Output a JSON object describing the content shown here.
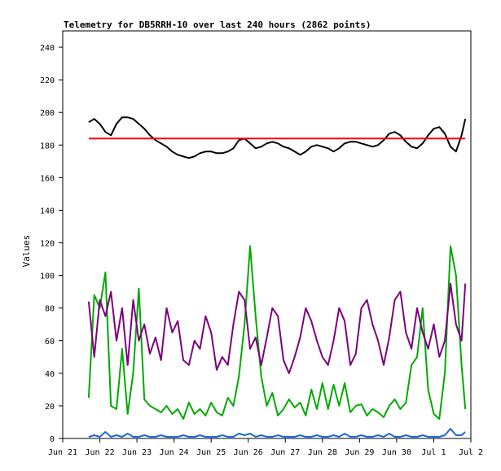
{
  "chart_data": {
    "type": "line",
    "title": "Telemetry for DB5RRH-10 over last 240 hours (2862 points)",
    "xlabel": "",
    "ylabel": "Values",
    "xlim": [
      "Jun 21",
      "Jul 2"
    ],
    "ylim": [
      0,
      250
    ],
    "x_ticks": [
      "Jun 21",
      "Jun 22",
      "Jun 23",
      "Jun 24",
      "Jun 25",
      "Jun 26",
      "Jun 27",
      "Jun 28",
      "Jun 29",
      "Jun 30",
      "Jul 1",
      "Jul 2"
    ],
    "y_ticks": [
      0,
      20,
      40,
      60,
      80,
      100,
      120,
      140,
      160,
      180,
      200,
      220,
      240
    ],
    "grid": false,
    "legend": "none",
    "series": [
      {
        "color": "#000000",
        "x": [
          0.7,
          0.85,
          1.0,
          1.15,
          1.3,
          1.45,
          1.6,
          1.75,
          1.9,
          2.05,
          2.2,
          2.35,
          2.5,
          2.65,
          2.8,
          2.95,
          3.1,
          3.25,
          3.4,
          3.55,
          3.7,
          3.85,
          4.0,
          4.15,
          4.3,
          4.45,
          4.6,
          4.75,
          4.9,
          5.05,
          5.2,
          5.35,
          5.5,
          5.65,
          5.8,
          5.95,
          6.1,
          6.25,
          6.4,
          6.55,
          6.7,
          6.85,
          7.0,
          7.15,
          7.3,
          7.45,
          7.6,
          7.75,
          7.9,
          8.05,
          8.2,
          8.35,
          8.5,
          8.65,
          8.8,
          8.95,
          9.1,
          9.25,
          9.4,
          9.55,
          9.7,
          9.85,
          10.0,
          10.15,
          10.3,
          10.45,
          10.6,
          10.75,
          10.85
        ],
        "y": [
          194,
          196,
          193,
          188,
          186,
          193,
          197,
          197,
          196,
          193,
          190,
          186,
          183,
          181,
          179,
          176,
          174,
          173,
          172,
          173,
          175,
          176,
          176,
          175,
          175,
          176,
          178,
          183,
          184,
          181,
          178,
          179,
          181,
          182,
          181,
          179,
          178,
          176,
          174,
          176,
          179,
          180,
          179,
          178,
          176,
          178,
          181,
          182,
          182,
          181,
          180,
          179,
          180,
          183,
          187,
          188,
          186,
          182,
          179,
          178,
          181,
          186,
          190,
          191,
          187,
          179,
          176,
          186,
          196
        ]
      },
      {
        "color": "#ff0000",
        "x": [
          0.7,
          10.85
        ],
        "y": [
          184,
          184
        ]
      },
      {
        "color": "#00aa00",
        "x": [
          0.7,
          0.85,
          1.0,
          1.15,
          1.3,
          1.45,
          1.6,
          1.75,
          1.9,
          2.05,
          2.2,
          2.35,
          2.5,
          2.65,
          2.8,
          2.95,
          3.1,
          3.25,
          3.4,
          3.55,
          3.7,
          3.85,
          4.0,
          4.15,
          4.3,
          4.45,
          4.6,
          4.75,
          4.9,
          5.05,
          5.2,
          5.35,
          5.5,
          5.65,
          5.8,
          5.95,
          6.1,
          6.25,
          6.4,
          6.55,
          6.7,
          6.85,
          7.0,
          7.15,
          7.3,
          7.45,
          7.6,
          7.75,
          7.9,
          8.05,
          8.2,
          8.35,
          8.5,
          8.65,
          8.8,
          8.95,
          9.1,
          9.25,
          9.4,
          9.55,
          9.7,
          9.85,
          10.0,
          10.15,
          10.3,
          10.45,
          10.6,
          10.75,
          10.85
        ],
        "y": [
          25,
          88,
          80,
          102,
          20,
          18,
          55,
          15,
          40,
          92,
          24,
          20,
          18,
          16,
          20,
          15,
          18,
          12,
          22,
          15,
          18,
          14,
          22,
          16,
          14,
          25,
          20,
          38,
          70,
          118,
          75,
          38,
          20,
          28,
          14,
          18,
          24,
          19,
          22,
          14,
          30,
          18,
          34,
          18,
          33,
          20,
          34,
          16,
          20,
          21,
          14,
          18,
          16,
          13,
          20,
          24,
          18,
          22,
          45,
          50,
          80,
          30,
          15,
          12,
          40,
          118,
          100,
          45,
          18
        ]
      },
      {
        "color": "#7d007d",
        "x": [
          0.7,
          0.85,
          1.0,
          1.15,
          1.3,
          1.45,
          1.6,
          1.75,
          1.9,
          2.05,
          2.2,
          2.35,
          2.5,
          2.65,
          2.8,
          2.95,
          3.1,
          3.25,
          3.4,
          3.55,
          3.7,
          3.85,
          4.0,
          4.15,
          4.3,
          4.45,
          4.6,
          4.75,
          4.9,
          5.05,
          5.2,
          5.35,
          5.5,
          5.65,
          5.8,
          5.95,
          6.1,
          6.25,
          6.4,
          6.55,
          6.7,
          6.85,
          7.0,
          7.15,
          7.3,
          7.45,
          7.6,
          7.75,
          7.9,
          8.05,
          8.2,
          8.35,
          8.5,
          8.65,
          8.8,
          8.95,
          9.1,
          9.25,
          9.4,
          9.55,
          9.7,
          9.85,
          10.0,
          10.15,
          10.3,
          10.45,
          10.6,
          10.75,
          10.85
        ],
        "y": [
          84,
          50,
          85,
          75,
          90,
          60,
          80,
          45,
          85,
          60,
          70,
          52,
          62,
          48,
          80,
          65,
          72,
          48,
          45,
          60,
          55,
          75,
          65,
          42,
          50,
          45,
          70,
          90,
          85,
          55,
          62,
          45,
          62,
          80,
          75,
          48,
          40,
          50,
          62,
          80,
          72,
          60,
          50,
          45,
          60,
          80,
          72,
          45,
          52,
          80,
          85,
          70,
          60,
          45,
          62,
          85,
          90,
          65,
          55,
          80,
          65,
          55,
          70,
          50,
          60,
          95,
          70,
          60,
          95
        ]
      },
      {
        "color": "#1e6ad8",
        "x": [
          0.7,
          0.85,
          1.0,
          1.15,
          1.3,
          1.45,
          1.6,
          1.75,
          1.9,
          2.05,
          2.2,
          2.35,
          2.5,
          2.65,
          2.8,
          2.95,
          3.1,
          3.25,
          3.4,
          3.55,
          3.7,
          3.85,
          4.0,
          4.15,
          4.3,
          4.45,
          4.6,
          4.75,
          4.9,
          5.05,
          5.2,
          5.35,
          5.5,
          5.65,
          5.8,
          5.95,
          6.1,
          6.25,
          6.4,
          6.55,
          6.7,
          6.85,
          7.0,
          7.15,
          7.3,
          7.45,
          7.6,
          7.75,
          7.9,
          8.05,
          8.2,
          8.35,
          8.5,
          8.65,
          8.8,
          8.95,
          9.1,
          9.25,
          9.4,
          9.55,
          9.7,
          9.85,
          10.0,
          10.15,
          10.3,
          10.45,
          10.6,
          10.75,
          10.85
        ],
        "y": [
          1,
          2,
          1,
          4,
          1,
          2,
          1,
          3,
          1,
          1,
          2,
          1,
          1,
          2,
          1,
          1,
          1,
          2,
          1,
          1,
          2,
          1,
          1,
          1,
          2,
          1,
          1,
          3,
          2,
          3,
          1,
          2,
          1,
          1,
          2,
          1,
          1,
          1,
          2,
          1,
          1,
          2,
          1,
          1,
          2,
          1,
          3,
          1,
          1,
          2,
          1,
          1,
          2,
          1,
          3,
          1,
          1,
          2,
          1,
          1,
          2,
          1,
          1,
          1,
          2,
          6,
          2,
          2,
          4
        ]
      }
    ]
  }
}
